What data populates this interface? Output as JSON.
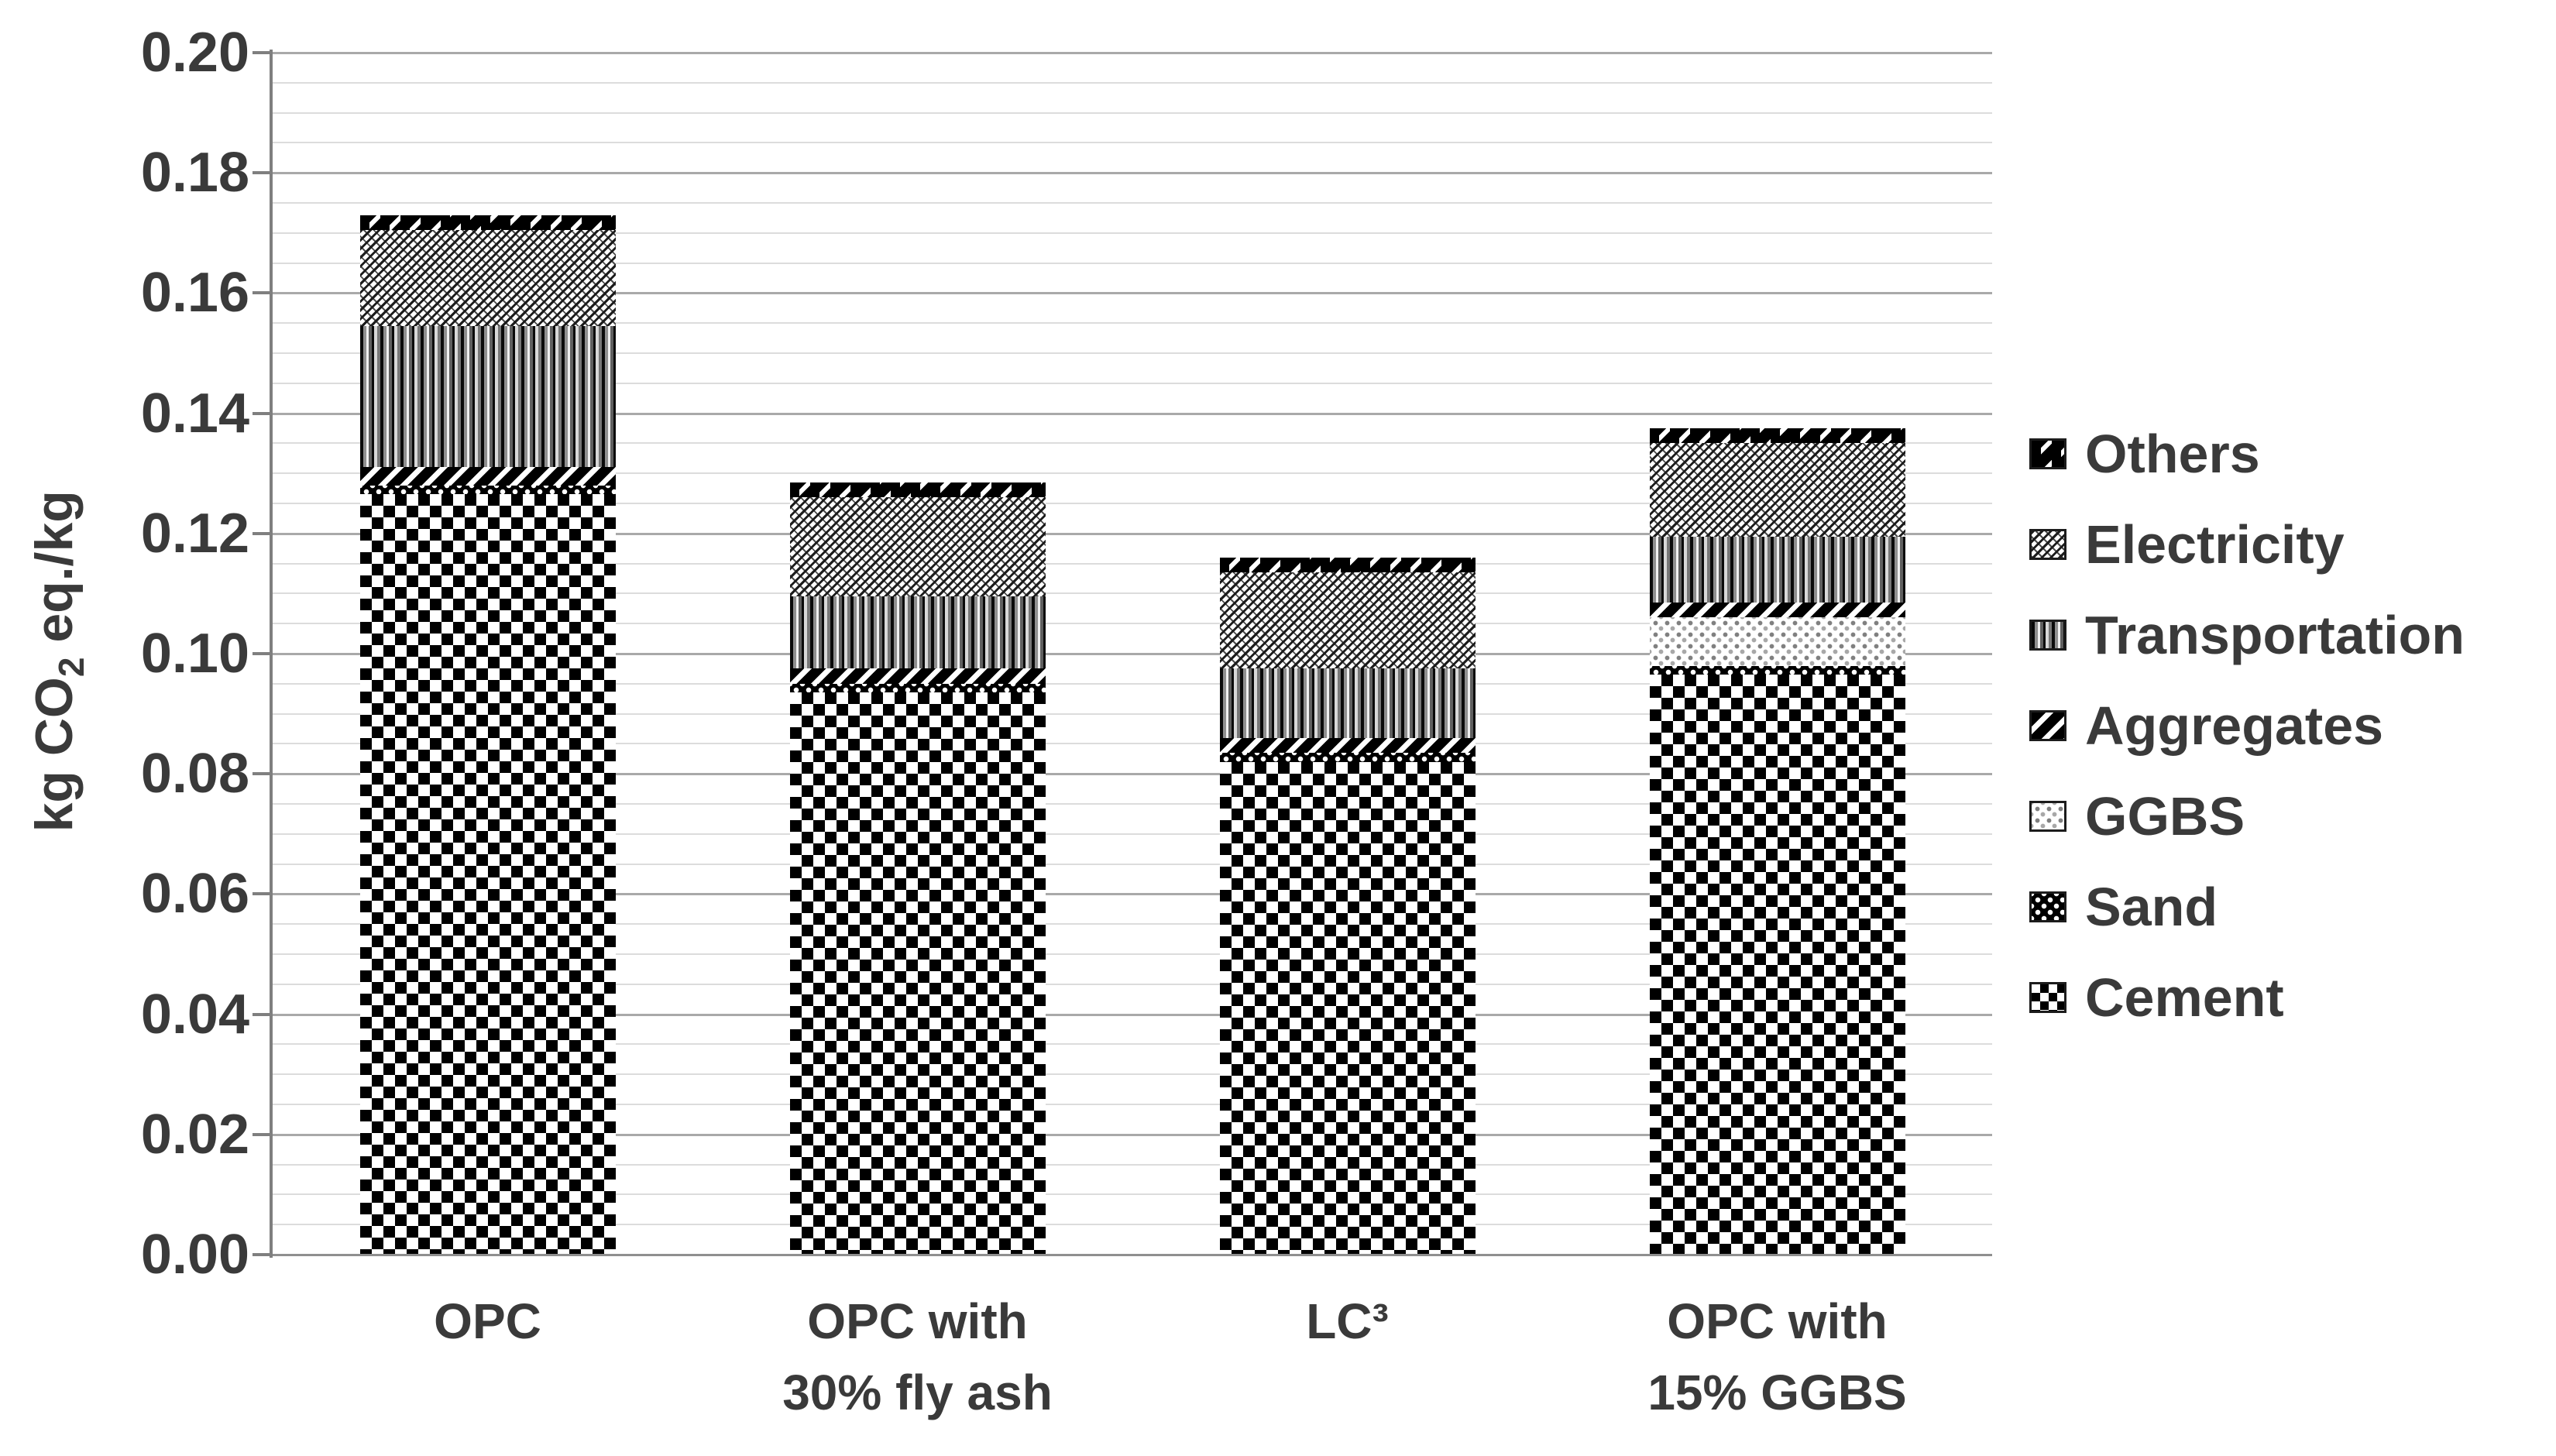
{
  "figure": {
    "background": "#ffffff",
    "text_color": "#3a3a3a",
    "grid_minor_color": "#dcdcdc",
    "grid_major_color": "#a9a9a9",
    "axis_color": "#7f7f7f"
  },
  "y_axis": {
    "title_prefix": "kg CO",
    "title_sub": "2",
    "title_suffix": " eq./kg",
    "min": 0.0,
    "max": 0.2,
    "major_step": 0.02,
    "minor_step": 0.005,
    "tick_labels": [
      "0.00",
      "0.02",
      "0.04",
      "0.06",
      "0.08",
      "0.10",
      "0.12",
      "0.14",
      "0.16",
      "0.18",
      "0.20"
    ]
  },
  "x_axis": {
    "category_lines": [
      [
        "OPC"
      ],
      [
        "OPC with",
        "30% fly ash"
      ],
      [
        "LC³"
      ],
      [
        "OPC with",
        "15% GGBS"
      ]
    ]
  },
  "chart_data": {
    "type": "bar",
    "stacked": true,
    "title": "",
    "xlabel": "",
    "ylabel": "kg CO2 eq./kg",
    "ylim": [
      0.0,
      0.2
    ],
    "grid": "horizontal, minor lines every 0.005, major every 0.02",
    "legend_position": "right",
    "categories": [
      "OPC",
      "OPC with 30% fly ash",
      "LC³",
      "OPC with 15% GGBS"
    ],
    "series": [
      {
        "name": "Cement",
        "pattern": "cement",
        "values": [
          0.1265,
          0.0935,
          0.082,
          0.0965
        ]
      },
      {
        "name": "Sand",
        "pattern": "sand",
        "values": [
          0.0015,
          0.0015,
          0.0015,
          0.0015
        ]
      },
      {
        "name": "GGBS",
        "pattern": "ggbs",
        "values": [
          0.0,
          0.0,
          0.0,
          0.008
        ]
      },
      {
        "name": "Aggregates",
        "pattern": "aggregates",
        "values": [
          0.003,
          0.0025,
          0.0025,
          0.0025
        ]
      },
      {
        "name": "Transportation",
        "pattern": "transportation",
        "values": [
          0.0235,
          0.012,
          0.0115,
          0.011
        ]
      },
      {
        "name": "Electricity",
        "pattern": "electricity",
        "values": [
          0.016,
          0.0165,
          0.016,
          0.0155
        ]
      },
      {
        "name": "Others",
        "pattern": "others",
        "values": [
          0.0025,
          0.0025,
          0.0025,
          0.0025
        ]
      }
    ],
    "totals": [
      0.173,
      0.1285,
      0.116,
      0.1375
    ]
  },
  "legend": {
    "items": [
      {
        "label": "Others",
        "pattern": "others"
      },
      {
        "label": "Electricity",
        "pattern": "electricity"
      },
      {
        "label": "Transportation",
        "pattern": "transportation"
      },
      {
        "label": "Aggregates",
        "pattern": "aggregates"
      },
      {
        "label": "GGBS",
        "pattern": "ggbs"
      },
      {
        "label": "Sand",
        "pattern": "sand"
      },
      {
        "label": "Cement",
        "pattern": "cement"
      }
    ]
  }
}
